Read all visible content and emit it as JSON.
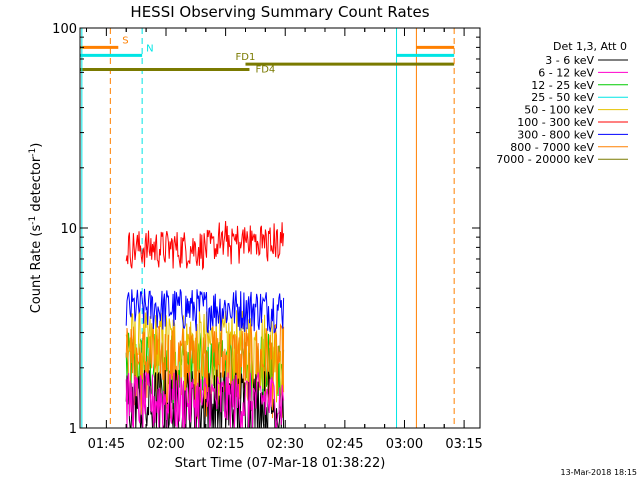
{
  "chart_data": {
    "type": "line",
    "title": "HESSI Observing Summary Count Rates",
    "xlabel": "Start Time (07-Mar-18 01:38:22)",
    "ylabel_text": "Count Rate (s",
    "ylabel_sup1": "-1",
    "ylabel_mid": " detector",
    "ylabel_sup2": "-1",
    "ylabel_end": ")",
    "y_scale": "log",
    "ylim": [
      1,
      100
    ],
    "xlim": [
      "01:38:22",
      "03:19:00"
    ],
    "x_ticks": [
      "01:45",
      "02:00",
      "02:15",
      "02:30",
      "02:45",
      "03:00",
      "03:15"
    ],
    "y_ticks": [
      "1",
      "10",
      "100"
    ],
    "data_window": [
      "01:50:00",
      "02:29:40"
    ],
    "legend_header": "Det 1,3, Att 0",
    "legend_position": "top-right",
    "series": [
      {
        "name": "3 - 6 keV",
        "color": "#000000",
        "base": 1.3,
        "spread": 0.7
      },
      {
        "name": "6 - 12 keV",
        "color": "#ff00cc",
        "base": 1.4,
        "spread": 0.5
      },
      {
        "name": "12 - 25 keV",
        "color": "#00cc00",
        "base": 2.1,
        "spread": 0.9
      },
      {
        "name": "25 - 50 keV",
        "color": "#00e5e5",
        "base": 0,
        "spread": 0
      },
      {
        "name": "50 - 100 keV",
        "color": "#e5c200",
        "base": 2.6,
        "spread": 1.3
      },
      {
        "name": "100 - 300 keV",
        "color": "#ff0000",
        "base": 8.0,
        "spread": 1.8
      },
      {
        "name": "300 - 800 keV",
        "color": "#0000ff",
        "base": 4.0,
        "spread": 1.0
      },
      {
        "name": "800 - 7000 keV",
        "color": "#ff8000",
        "base": 2.2,
        "spread": 1.1
      },
      {
        "name": "7000 - 20000 keV",
        "color": "#7a7a00",
        "base": 0,
        "spread": 0
      }
    ],
    "annotations": [
      {
        "label": "S",
        "color": "#ff8000",
        "level": 80,
        "segments": [
          [
            "01:38:22",
            "01:48:00"
          ],
          [
            "03:03:00",
            "03:12:30"
          ]
        ],
        "vlines": [
          "01:46:00",
          "03:03:00"
        ],
        "vline_dash": [
          true,
          false
        ]
      },
      {
        "label": "N",
        "color": "#00e5e5",
        "level": 73,
        "segments": [
          [
            "01:38:22",
            "01:54:00"
          ],
          [
            "02:58:00",
            "03:12:30"
          ]
        ],
        "vlines": [
          "01:54:00",
          "02:58:00"
        ],
        "vline_dash": [
          true,
          false
        ]
      },
      {
        "label": "FD1",
        "color": "#7a7a00",
        "level": 66,
        "segments": [
          [
            "02:20:00",
            "03:12:30"
          ]
        ]
      },
      {
        "label": "FD4",
        "color": "#7a7a00",
        "level": 62,
        "segments": [
          [
            "01:38:22",
            "02:21:00"
          ]
        ]
      }
    ],
    "extra_vlines": [
      {
        "time": "01:38:50",
        "color": "#00e5e5",
        "dash": false
      },
      {
        "time": "03:12:30",
        "color": "#ff8000",
        "dash": true
      }
    ]
  },
  "footer_stamp": "13-Mar-2018 18:15",
  "colors": {
    "background": "#ffffff",
    "axes": "#000000"
  }
}
